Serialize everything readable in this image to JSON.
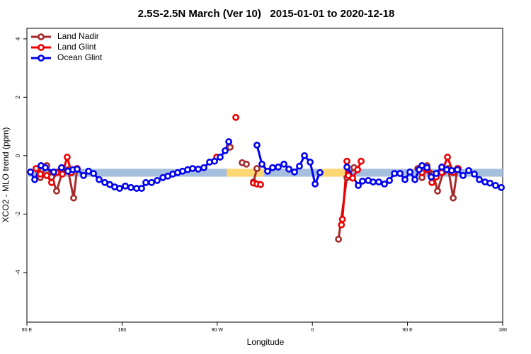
{
  "chart_data": {
    "type": "line",
    "title": "2.5S-2.5N March (Ver 10)   2015-01-01 to 2020-12-18",
    "x_label": "Longitude",
    "y_label": "XCO2 - MLO trend (ppm)",
    "xlim": [
      90,
      540
    ],
    "xticks": [
      {
        "value": 90,
        "label": "90 E"
      },
      {
        "value": 180,
        "label": "180"
      },
      {
        "value": 270,
        "label": "90 W"
      },
      {
        "value": 360,
        "label": "0"
      },
      {
        "value": 450,
        "label": "90 E"
      },
      {
        "value": 540,
        "label": "180"
      }
    ],
    "ylim": [
      -5.7,
      4.36
    ],
    "yticks": [
      -4,
      -2,
      0,
      2,
      4
    ],
    "legend": "top-left",
    "bands": [
      {
        "x": [
          90,
          540
        ],
        "y": [
          -0.72,
          -0.45
        ],
        "color": "#a7bfdf"
      },
      {
        "x": [
          279,
          314
        ],
        "y": [
          -0.72,
          -0.45
        ],
        "color": "#fdd774"
      },
      {
        "x": [
          369,
          393
        ],
        "y": [
          -0.72,
          -0.45
        ],
        "color": "#fdd774"
      }
    ],
    "series": [
      {
        "name": "Land Nadir",
        "color": "#a52a2a",
        "x": [
          100,
          102.7,
          108.8,
          113.4,
          118.1,
          123.5,
          128.8,
          134.2,
          137.5,
          null,
          282.2,
          null,
          293.6,
          297.6,
          null,
          304.3,
          307.6,
          null,
          384.7,
          392.7,
          399.4,
          null,
          459.7,
          463.7,
          468.4,
          474.4,
          478.4,
          483.8,
          488.5,
          493.2,
          497.2
        ],
        "values": [
          -0.48,
          -0.75,
          -0.34,
          -0.73,
          -1.21,
          -0.56,
          -0.48,
          -1.45,
          -0.44,
          null,
          0.29,
          null,
          -0.24,
          -0.29,
          null,
          -0.9,
          -0.44,
          null,
          -2.86,
          -0.75,
          -0.41,
          null,
          -0.44,
          -0.75,
          -0.34,
          -0.63,
          -1.21,
          -0.56,
          -0.44,
          -1.45,
          -0.44
        ]
      },
      {
        "name": "Land Glint",
        "color": "#ee0000",
        "x": [
          98.7,
          102.7,
          108.8,
          113.4,
          118.1,
          123.5,
          128.1,
          132.2,
          137.5,
          null,
          269.5,
          null,
          287.6,
          null,
          304.3,
          307.6,
          311,
          null,
          387.5,
          388.4,
          392.7,
          394,
          398.1,
          402.8,
          406.1,
          null,
          463.7,
          468.4,
          473.1,
          477.1,
          482.4,
          487.8,
          493.2,
          497.9
        ],
        "values": [
          -0.44,
          -0.63,
          -0.68,
          -0.92,
          -0.58,
          -0.63,
          -0.05,
          -0.58,
          -0.44,
          null,
          -0.05,
          null,
          1.31,
          null,
          -0.94,
          -0.97,
          -0.99,
          null,
          -2.37,
          -2.18,
          -0.19,
          -0.68,
          -0.77,
          -0.48,
          -0.19,
          null,
          -0.58,
          -0.48,
          -0.92,
          -0.73,
          -0.58,
          -0.05,
          -0.58,
          -0.44
        ]
      },
      {
        "name": "Ocean Glint",
        "color": "#0000ee",
        "x": [
          93.3,
          97.4,
          103.4,
          107.4,
          115.4,
          122.8,
          128.8,
          133.5,
          137.5,
          143.6,
          148.3,
          153,
          158.3,
          163.7,
          168.4,
          173,
          177.7,
          183.1,
          188.4,
          193.8,
          198.5,
          202.5,
          207.9,
          213.2,
          218.6,
          223.3,
          227.9,
          232.6,
          237.3,
          242,
          246.7,
          252,
          257.4,
          262.8,
          267.5,
          272.8,
          277.5,
          280.9,
          null,
          307.6,
          312.3,
          317.7,
          322.4,
          327.7,
          333.1,
          337.8,
          343.1,
          347.8,
          352.5,
          357.9,
          362.6,
          367.2,
          null,
          392.7,
          403.4,
          407.4,
          412.8,
          417.5,
          422.8,
          428.2,
          432.9,
          437.6,
          442.9,
          447.6,
          452.3,
          457,
          461,
          463.7,
          468.4,
          472.4,
          477.1,
          482.4,
          487.1,
          491.8,
          497.2,
          502.5,
          507.9,
          513.2,
          517.9,
          523.3,
          528,
          533.3,
          538.7
        ],
        "values": [
          -0.56,
          -0.82,
          -0.34,
          -0.41,
          -0.56,
          -0.41,
          -0.53,
          -0.48,
          -0.46,
          -0.68,
          -0.53,
          -0.61,
          -0.82,
          -0.92,
          -0.99,
          -1.07,
          -1.12,
          -1.04,
          -1.09,
          -1.12,
          -1.12,
          -0.92,
          -0.92,
          -0.85,
          -0.75,
          -0.7,
          -0.63,
          -0.58,
          -0.53,
          -0.48,
          -0.44,
          -0.46,
          -0.41,
          -0.22,
          -0.19,
          -0.05,
          0.17,
          0.48,
          null,
          0.36,
          -0.29,
          -0.53,
          -0.41,
          -0.39,
          -0.29,
          -0.46,
          -0.56,
          -0.36,
          0.0,
          -0.22,
          -0.97,
          -0.58,
          null,
          -0.39,
          -1.02,
          -0.87,
          -0.85,
          -0.9,
          -0.9,
          -0.97,
          -0.85,
          -0.61,
          -0.61,
          -0.82,
          -0.56,
          -0.82,
          -0.48,
          -0.34,
          -0.41,
          -0.73,
          -0.61,
          -0.39,
          -0.48,
          -0.51,
          -0.48,
          -0.68,
          -0.51,
          -0.63,
          -0.82,
          -0.9,
          -0.94,
          -1.02,
          -1.09
        ]
      }
    ]
  }
}
